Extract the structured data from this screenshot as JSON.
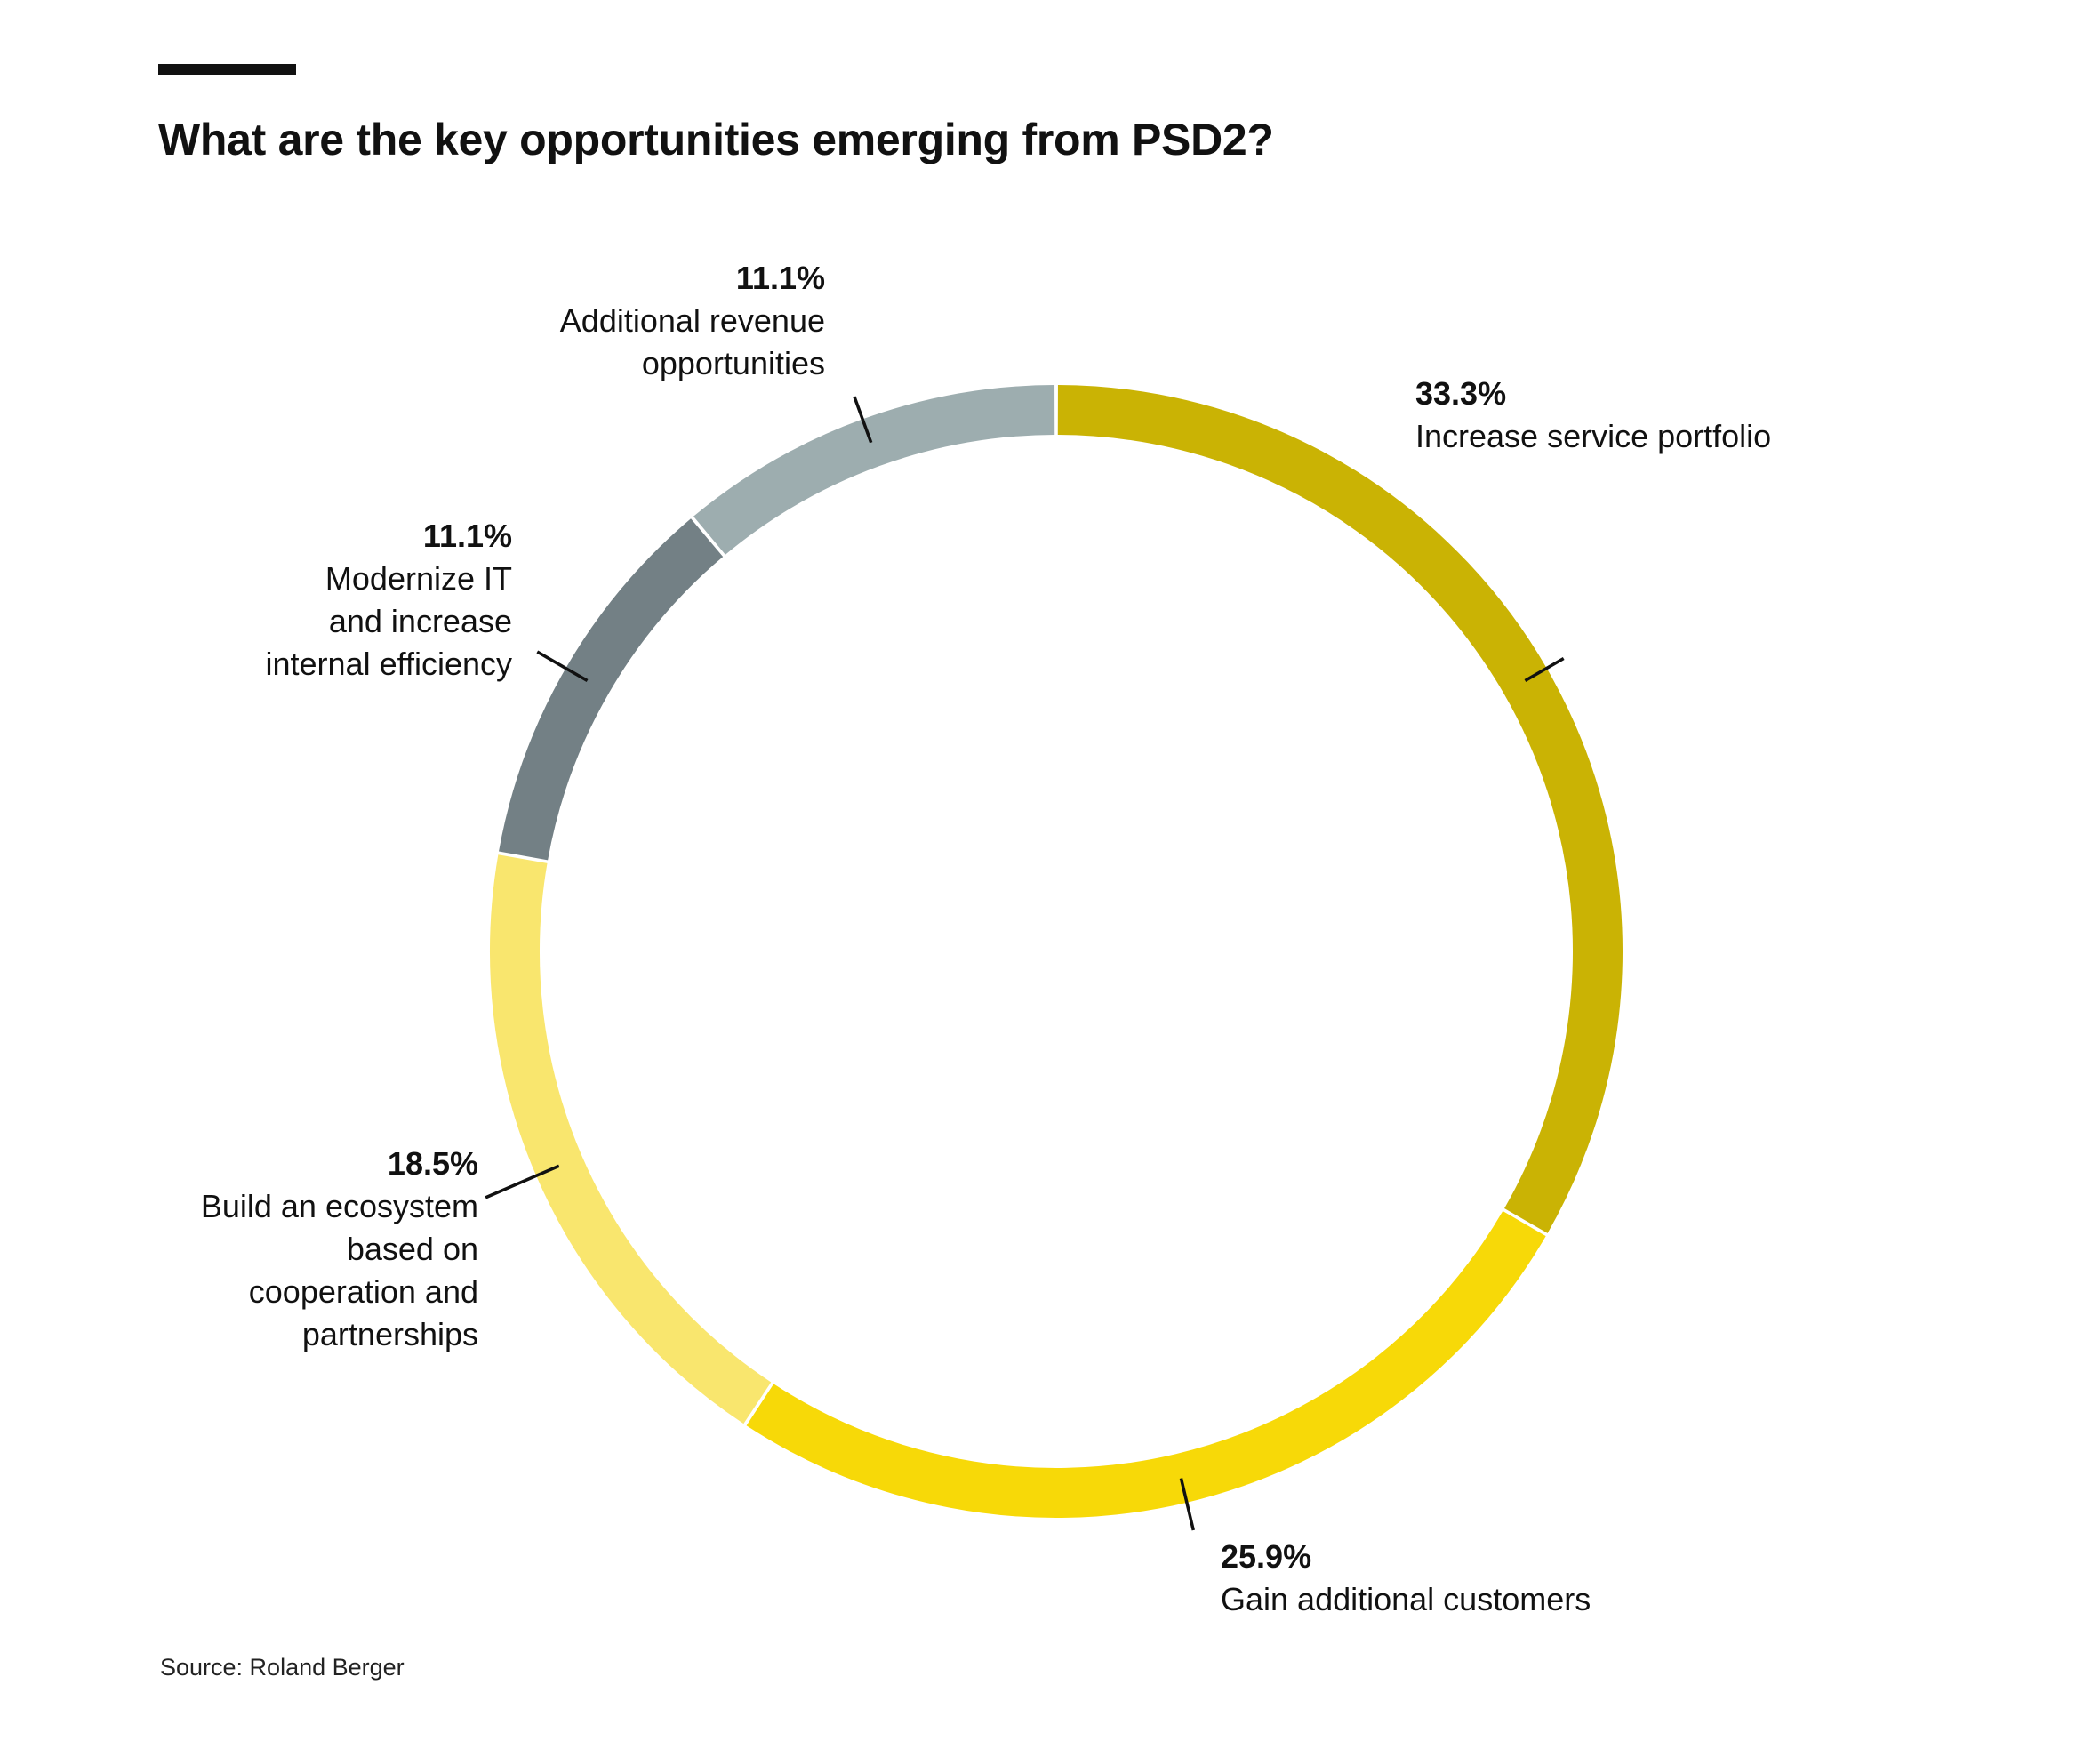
{
  "header": {
    "title": "What are the key opportunities emerging from PSD2?"
  },
  "footer": {
    "source": "Source: Roland Berger"
  },
  "chart_data": {
    "type": "pie",
    "donut": true,
    "title": "What are the key opportunities emerging from PSD2?",
    "start": "12 o'clock, clockwise",
    "slices": [
      {
        "value": 33.3,
        "value_label": "33.3%",
        "label_lines": [
          "Increase service portfolio"
        ],
        "color": "#CAB304"
      },
      {
        "value": 25.9,
        "value_label": "25.9%",
        "label_lines": [
          "Gain additional customers"
        ],
        "color": "#F7D908"
      },
      {
        "value": 18.5,
        "value_label": "18.5%",
        "label_lines": [
          "Build an ecosystem",
          "based on",
          "cooperation and",
          "partnerships"
        ],
        "color": "#F9E66E"
      },
      {
        "value": 11.1,
        "value_label": "11.1%",
        "label_lines": [
          "Modernize IT",
          "and increase",
          "internal efficiency"
        ],
        "color": "#738085"
      },
      {
        "value": 11.1,
        "value_label": "11.1%",
        "label_lines": [
          "Additional revenue",
          "opportunities"
        ],
        "color": "#9DADAF"
      }
    ],
    "source": "Source: Roland Berger"
  }
}
